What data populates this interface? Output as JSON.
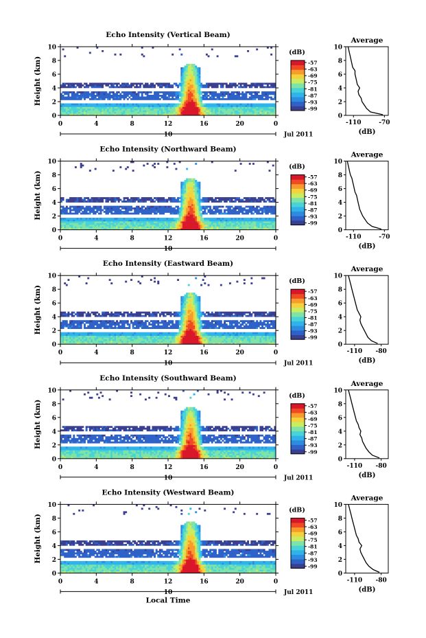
{
  "colors": {
    "page_bg": "#ffffff",
    "axis": "#000000",
    "colorbar": [
      "#3b3f8f",
      "#2f62c8",
      "#2e8ce0",
      "#2fb3ea",
      "#48d4d6",
      "#7fe3a8",
      "#c9ec63",
      "#f4d23c",
      "#f99b2c",
      "#ef4a24",
      "#d9172a"
    ]
  },
  "chart_data": [
    {
      "type": "heatmap",
      "title": "Echo Intensity (Vertical Beam)",
      "ylabel": "Height (km)",
      "xlabel": "",
      "x_ticks": [
        "0",
        "4",
        "8",
        "12",
        "16",
        "20",
        "0"
      ],
      "y_ticks": [
        "0",
        "2",
        "4",
        "6",
        "8",
        "10"
      ],
      "xlim": [
        0,
        24
      ],
      "ylim": [
        0,
        10
      ],
      "date_marker": "10",
      "date_label": "Jul 2011",
      "colorbar": {
        "unit": "(dB)",
        "ticks": [
          "-57",
          "-63",
          "-69",
          "-75",
          "-81",
          "-87",
          "-93",
          "-99"
        ]
      },
      "profile": {
        "title": "Average",
        "xlabel": "(dB)",
        "x_ticks": [
          "-110",
          "-70"
        ],
        "xlim": [
          -120,
          -65
        ],
        "ylim": [
          0,
          10
        ],
        "height": [
          0.1,
          0.5,
          1,
          1.5,
          2,
          2.5,
          3,
          3.5,
          4,
          4.5,
          5,
          5.5,
          6,
          6.5,
          7,
          7.5,
          8,
          8.5,
          9,
          9.5,
          10
        ],
        "db": [
          -72,
          -88,
          -93,
          -96,
          -99,
          -100,
          -103,
          -104,
          -102,
          -105,
          -106,
          -107,
          -108,
          -108,
          -111,
          -112,
          -113,
          -114,
          -115,
          -116,
          -117
        ]
      }
    },
    {
      "type": "heatmap",
      "title": "Echo Intensity (Northward Beam)",
      "ylabel": "Height (km)",
      "xlabel": "",
      "x_ticks": [
        "0",
        "4",
        "8",
        "12",
        "16",
        "20",
        "0"
      ],
      "y_ticks": [
        "0",
        "2",
        "4",
        "6",
        "8",
        "10"
      ],
      "xlim": [
        0,
        24
      ],
      "ylim": [
        0,
        10
      ],
      "date_marker": "10",
      "date_label": "",
      "colorbar": {
        "unit": "(dB)",
        "ticks": [
          "-57",
          "-63",
          "-69",
          "-75",
          "-81",
          "-87",
          "-93",
          "-99"
        ]
      },
      "profile": {
        "title": "Average",
        "xlabel": "(dB)",
        "x_ticks": [
          "-110",
          "-70"
        ],
        "xlim": [
          -120,
          -65
        ],
        "ylim": [
          0,
          10
        ],
        "height": [
          0.1,
          0.5,
          1,
          1.5,
          2,
          2.5,
          3,
          3.5,
          4,
          4.5,
          5,
          5.5,
          6,
          6.5,
          7,
          7.5,
          8,
          8.5,
          9,
          9.5,
          10
        ],
        "db": [
          -74,
          -86,
          -92,
          -95,
          -98,
          -100,
          -102,
          -103,
          -104,
          -105,
          -106,
          -108,
          -109,
          -110,
          -111,
          -112,
          -114,
          -115,
          -116,
          -117,
          -118
        ]
      }
    },
    {
      "type": "heatmap",
      "title": "Echo Intensity (Eastward Beam)",
      "ylabel": "Height (km)",
      "xlabel": "",
      "x_ticks": [
        "0",
        "4",
        "8",
        "12",
        "16",
        "20",
        "0"
      ],
      "y_ticks": [
        "0",
        "2",
        "4",
        "6",
        "8",
        "10"
      ],
      "xlim": [
        0,
        24
      ],
      "ylim": [
        0,
        10
      ],
      "date_marker": "10",
      "date_label": "Jul 2011",
      "colorbar": {
        "unit": "(dB)",
        "ticks": [
          "-57",
          "-63",
          "-69",
          "-75",
          "-81",
          "-87",
          "-93",
          "-99"
        ]
      },
      "profile": {
        "title": "Average",
        "xlabel": "(dB)",
        "x_ticks": [
          "-110",
          "-80"
        ],
        "xlim": [
          -120,
          -72
        ],
        "ylim": [
          0,
          10
        ],
        "height": [
          0.1,
          0.5,
          1,
          1.5,
          2,
          2.5,
          3,
          3.5,
          4,
          4.5,
          5,
          5.5,
          6,
          6.5,
          7,
          7.5,
          8,
          8.5,
          9,
          9.5,
          10
        ],
        "db": [
          -84,
          -91,
          -95,
          -97,
          -99,
          -101,
          -103,
          -104,
          -103,
          -105,
          -107,
          -108,
          -109,
          -110,
          -111,
          -112,
          -113,
          -114,
          -115,
          -116,
          -117
        ]
      }
    },
    {
      "type": "heatmap",
      "title": "Echo Intensity (Southward Beam)",
      "ylabel": "Height (km)",
      "xlabel": "",
      "x_ticks": [
        "0",
        "4",
        "8",
        "12",
        "16",
        "20",
        "0"
      ],
      "y_ticks": [
        "0",
        "2",
        "4",
        "6",
        "8",
        "10"
      ],
      "xlim": [
        0,
        24
      ],
      "ylim": [
        0,
        10
      ],
      "date_marker": "10",
      "date_label": "Jul 2011",
      "colorbar": {
        "unit": "(dB)",
        "ticks": [
          "-57",
          "-63",
          "-69",
          "-75",
          "-81",
          "-87",
          "-93",
          "-99"
        ]
      },
      "profile": {
        "title": "Average",
        "xlabel": "(dB)",
        "x_ticks": [
          "-110",
          "-80"
        ],
        "xlim": [
          -120,
          -72
        ],
        "ylim": [
          0,
          10
        ],
        "height": [
          0.1,
          0.5,
          1,
          1.5,
          2,
          2.5,
          3,
          3.5,
          4,
          4.5,
          5,
          5.5,
          6,
          6.5,
          7,
          7.5,
          8,
          8.5,
          9,
          9.5,
          10
        ],
        "db": [
          -82,
          -90,
          -94,
          -97,
          -99,
          -101,
          -102,
          -104,
          -103,
          -105,
          -106,
          -108,
          -109,
          -110,
          -111,
          -112,
          -113,
          -114,
          -115,
          -116,
          -117
        ]
      }
    },
    {
      "type": "heatmap",
      "title": "Echo Intensity (Westward Beam)",
      "ylabel": "Height (km)",
      "xlabel": "Local Time",
      "x_ticks": [
        "0",
        "4",
        "8",
        "12",
        "16",
        "20",
        "0"
      ],
      "y_ticks": [
        "0",
        "2",
        "4",
        "6",
        "8",
        "10"
      ],
      "xlim": [
        0,
        24
      ],
      "ylim": [
        0,
        10
      ],
      "date_marker": "10",
      "date_label": "Jul 2011",
      "colorbar": {
        "unit": "(dB)",
        "ticks": [
          "-57",
          "-63",
          "-69",
          "-75",
          "-81",
          "-87",
          "-93",
          "-99"
        ]
      },
      "profile": {
        "title": "Average",
        "xlabel": "(dB)",
        "x_ticks": [
          "-110",
          "-80"
        ],
        "xlim": [
          -120,
          -72
        ],
        "ylim": [
          0,
          10
        ],
        "height": [
          0.1,
          0.5,
          1,
          1.5,
          2,
          2.5,
          3,
          3.5,
          4,
          4.5,
          5,
          5.5,
          6,
          6.5,
          7,
          7.5,
          8,
          8.5,
          9,
          9.5,
          10
        ],
        "db": [
          -82,
          -89,
          -94,
          -97,
          -99,
          -101,
          -103,
          -104,
          -102,
          -105,
          -106,
          -108,
          -109,
          -110,
          -111,
          -112,
          -113,
          -114,
          -115,
          -116,
          -117
        ]
      }
    }
  ]
}
